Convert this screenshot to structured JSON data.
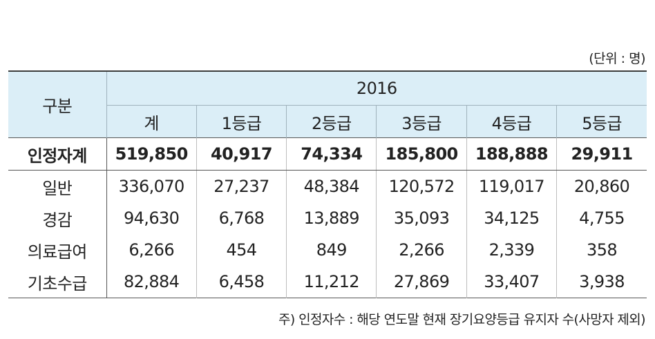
{
  "unit_label": "(단위 : 명)",
  "header": {
    "category_label": "구분",
    "year": "2016",
    "columns": [
      "계",
      "1등급",
      "2등급",
      "3등급",
      "4등급",
      "5등급"
    ]
  },
  "rows": [
    {
      "label": "인정자계",
      "values": [
        "519,850",
        "40,917",
        "74,334",
        "185,800",
        "188,888",
        "29,911"
      ]
    },
    {
      "label": "일반",
      "values": [
        "336,070",
        "27,237",
        "48,384",
        "120,572",
        "119,017",
        "20,860"
      ]
    },
    {
      "label": "경감",
      "values": [
        "94,630",
        "6,768",
        "13,889",
        "35,093",
        "34,125",
        "4,755"
      ]
    },
    {
      "label": "의료급여",
      "values": [
        "6,266",
        "454",
        "849",
        "2,266",
        "2,339",
        "358"
      ]
    },
    {
      "label": "기초수급",
      "values": [
        "82,884",
        "6,458",
        "11,212",
        "27,869",
        "33,407",
        "3,938"
      ]
    }
  ],
  "footnote": "주) 인정자수 : 해당 연도말 현재 장기요양등급 유지자 수(사망자 제외)"
}
